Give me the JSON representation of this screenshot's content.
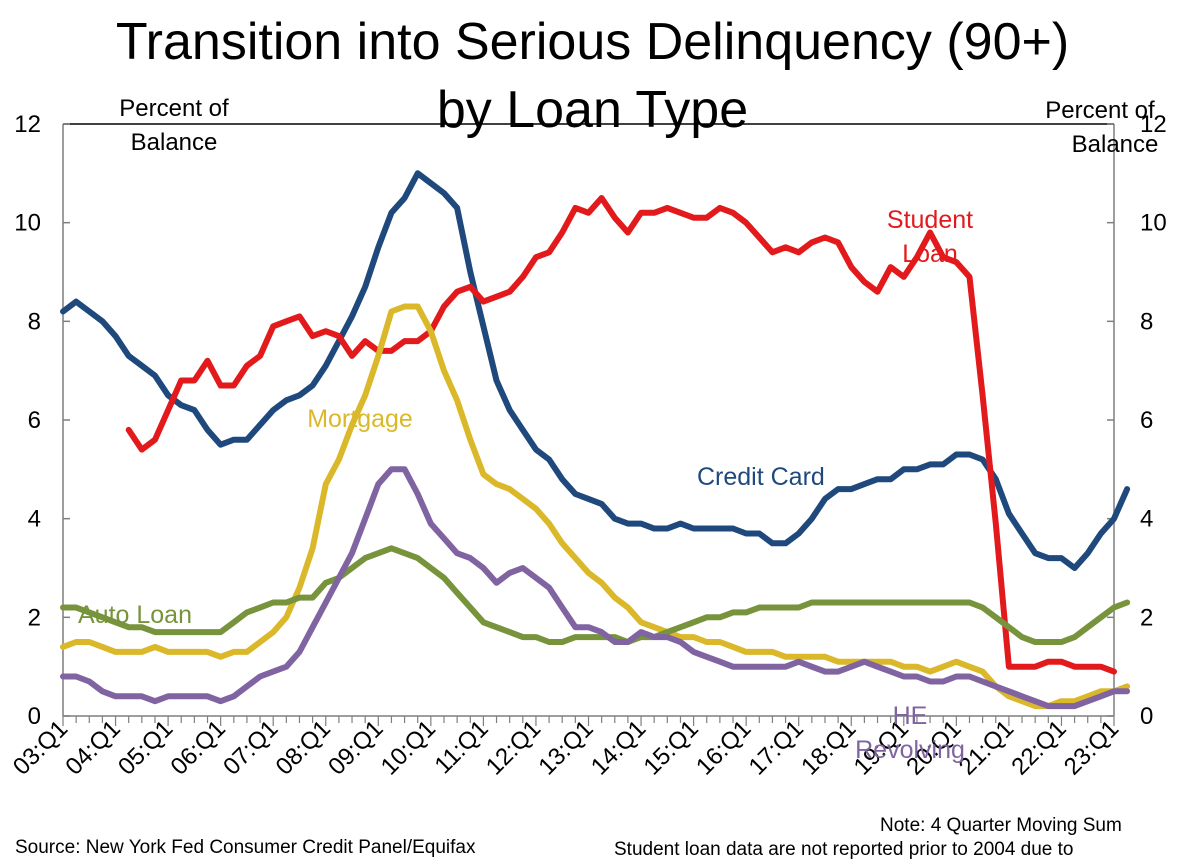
{
  "chart_data": {
    "type": "line",
    "title_line1": "Transition into Serious Delinquency (90+)",
    "title_line2": "by Loan Type",
    "y_left_label_line1": "Percent of",
    "y_left_label_line2": "Balance",
    "y_right_label_line1": "Percent of",
    "y_right_label_line2": "Balance",
    "ylim": [
      0,
      12
    ],
    "y_ticks": [
      "0",
      "2",
      "4",
      "6",
      "8",
      "10",
      "12"
    ],
    "x_tick_labels": [
      "03:Q1",
      "04:Q1",
      "05:Q1",
      "06:Q1",
      "07:Q1",
      "08:Q1",
      "09:Q1",
      "10:Q1",
      "11:Q1",
      "12:Q1",
      "13:Q1",
      "14:Q1",
      "15:Q1",
      "16:Q1",
      "17:Q1",
      "18:Q1",
      "19:Q1",
      "20:Q1",
      "21:Q1",
      "22:Q1",
      "23:Q1"
    ],
    "x_start": "2003:Q1",
    "grid": false,
    "series": [
      {
        "name": "Credit Card",
        "label_lines": [
          "Credit Card"
        ],
        "color": "#1f497d",
        "start": "2003:Q1",
        "values": [
          8.2,
          8.4,
          8.2,
          8.0,
          7.7,
          7.3,
          7.1,
          6.9,
          6.5,
          6.3,
          6.2,
          5.8,
          5.5,
          5.6,
          5.6,
          5.9,
          6.2,
          6.4,
          6.5,
          6.7,
          7.1,
          7.6,
          8.1,
          8.7,
          9.5,
          10.2,
          10.5,
          11.0,
          10.8,
          10.6,
          10.3,
          9.0,
          7.9,
          6.8,
          6.2,
          5.8,
          5.4,
          5.2,
          4.8,
          4.5,
          4.4,
          4.3,
          4.0,
          3.9,
          3.9,
          3.8,
          3.8,
          3.9,
          3.8,
          3.8,
          3.8,
          3.8,
          3.7,
          3.7,
          3.5,
          3.5,
          3.7,
          4.0,
          4.4,
          4.6,
          4.6,
          4.7,
          4.8,
          4.8,
          5.0,
          5.0,
          5.1,
          5.1,
          5.3,
          5.3,
          5.2,
          4.8,
          4.1,
          3.7,
          3.3,
          3.2,
          3.2,
          3.0,
          3.3,
          3.7,
          4.0,
          4.6
        ]
      },
      {
        "name": "Student Loan",
        "label_lines": [
          "Student",
          "Loan"
        ],
        "color": "#e31a1c",
        "start": "2004:Q2",
        "values": [
          5.8,
          5.4,
          5.6,
          6.2,
          6.8,
          6.8,
          7.2,
          6.7,
          6.7,
          7.1,
          7.3,
          7.9,
          8.0,
          8.1,
          7.7,
          7.8,
          7.7,
          7.3,
          7.6,
          7.4,
          7.4,
          7.6,
          7.6,
          7.8,
          8.3,
          8.6,
          8.7,
          8.4,
          8.5,
          8.6,
          8.9,
          9.3,
          9.4,
          9.8,
          10.3,
          10.2,
          10.5,
          10.1,
          9.8,
          10.2,
          10.2,
          10.3,
          10.2,
          10.1,
          10.1,
          10.3,
          10.2,
          10.0,
          9.7,
          9.4,
          9.5,
          9.4,
          9.6,
          9.7,
          9.6,
          9.1,
          8.8,
          8.6,
          9.1,
          8.9,
          9.3,
          9.8,
          9.3,
          9.2,
          8.9,
          6.5,
          3.9,
          1.0,
          1.0,
          1.0,
          1.1,
          1.1,
          1.0,
          1.0,
          1.0,
          0.9
        ]
      },
      {
        "name": "Mortgage",
        "label_lines": [
          "Mortgage"
        ],
        "color": "#dbb82a",
        "start": "2003:Q1",
        "values": [
          1.4,
          1.5,
          1.5,
          1.4,
          1.3,
          1.3,
          1.3,
          1.4,
          1.3,
          1.3,
          1.3,
          1.3,
          1.2,
          1.3,
          1.3,
          1.5,
          1.7,
          2.0,
          2.6,
          3.4,
          4.7,
          5.2,
          5.9,
          6.5,
          7.3,
          8.2,
          8.3,
          8.3,
          7.8,
          7.0,
          6.4,
          5.6,
          4.9,
          4.7,
          4.6,
          4.4,
          4.2,
          3.9,
          3.5,
          3.2,
          2.9,
          2.7,
          2.4,
          2.2,
          1.9,
          1.8,
          1.7,
          1.6,
          1.6,
          1.5,
          1.5,
          1.4,
          1.3,
          1.3,
          1.3,
          1.2,
          1.2,
          1.2,
          1.2,
          1.1,
          1.1,
          1.1,
          1.1,
          1.1,
          1.0,
          1.0,
          0.9,
          1.0,
          1.1,
          1.0,
          0.9,
          0.6,
          0.4,
          0.3,
          0.2,
          0.2,
          0.3,
          0.3,
          0.4,
          0.5,
          0.5,
          0.6
        ]
      },
      {
        "name": "Auto Loan",
        "label_lines": [
          "Auto Loan"
        ],
        "color": "#77933c",
        "start": "2003:Q1",
        "values": [
          2.2,
          2.2,
          2.1,
          2.0,
          1.9,
          1.8,
          1.8,
          1.7,
          1.7,
          1.7,
          1.7,
          1.7,
          1.7,
          1.9,
          2.1,
          2.2,
          2.3,
          2.3,
          2.4,
          2.4,
          2.7,
          2.8,
          3.0,
          3.2,
          3.3,
          3.4,
          3.3,
          3.2,
          3.0,
          2.8,
          2.5,
          2.2,
          1.9,
          1.8,
          1.7,
          1.6,
          1.6,
          1.5,
          1.5,
          1.6,
          1.6,
          1.6,
          1.6,
          1.5,
          1.6,
          1.6,
          1.7,
          1.8,
          1.9,
          2.0,
          2.0,
          2.1,
          2.1,
          2.2,
          2.2,
          2.2,
          2.2,
          2.3,
          2.3,
          2.3,
          2.3,
          2.3,
          2.3,
          2.3,
          2.3,
          2.3,
          2.3,
          2.3,
          2.3,
          2.3,
          2.2,
          2.0,
          1.8,
          1.6,
          1.5,
          1.5,
          1.5,
          1.6,
          1.8,
          2.0,
          2.2,
          2.3
        ]
      },
      {
        "name": "HE Revolving",
        "label_lines": [
          "HE",
          "Revolving"
        ],
        "color": "#8064a2",
        "start": "2003:Q1",
        "values": [
          0.8,
          0.8,
          0.7,
          0.5,
          0.4,
          0.4,
          0.4,
          0.3,
          0.4,
          0.4,
          0.4,
          0.4,
          0.3,
          0.4,
          0.6,
          0.8,
          0.9,
          1.0,
          1.3,
          1.8,
          2.3,
          2.8,
          3.3,
          4.0,
          4.7,
          5.0,
          5.0,
          4.5,
          3.9,
          3.6,
          3.3,
          3.2,
          3.0,
          2.7,
          2.9,
          3.0,
          2.8,
          2.6,
          2.2,
          1.8,
          1.8,
          1.7,
          1.5,
          1.5,
          1.7,
          1.6,
          1.6,
          1.5,
          1.3,
          1.2,
          1.1,
          1.0,
          1.0,
          1.0,
          1.0,
          1.0,
          1.1,
          1.0,
          0.9,
          0.9,
          1.0,
          1.1,
          1.0,
          0.9,
          0.8,
          0.8,
          0.7,
          0.7,
          0.8,
          0.8,
          0.7,
          0.6,
          0.5,
          0.4,
          0.3,
          0.2,
          0.2,
          0.2,
          0.3,
          0.4,
          0.5,
          0.5
        ]
      }
    ]
  },
  "footer": {
    "source": "Source: New York Fed Consumer Credit Panel/Equifax",
    "note_line1": "Note: 4 Quarter Moving Sum",
    "note_line2": "Student loan data are not reported prior to 2004 due to"
  }
}
